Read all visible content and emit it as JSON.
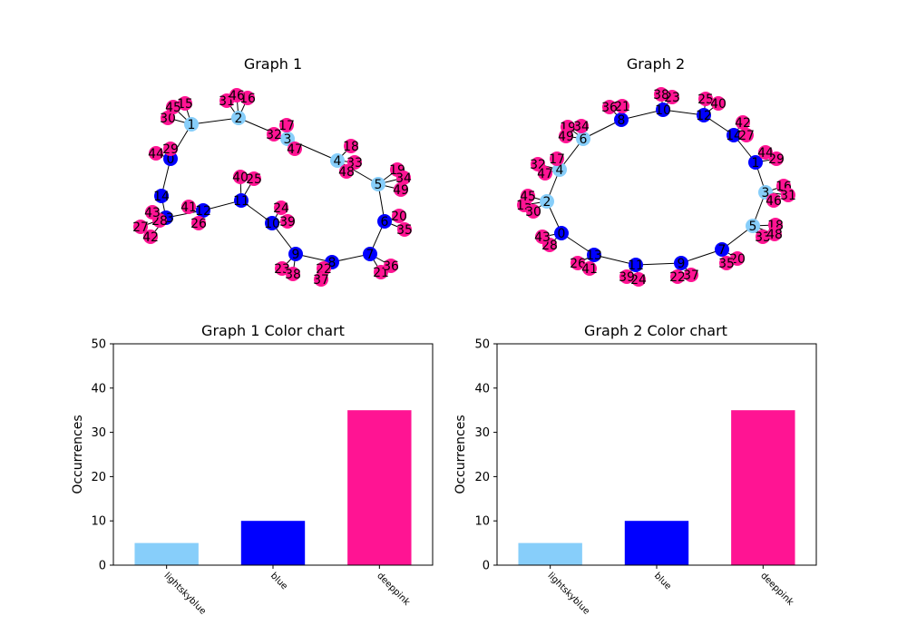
{
  "colors": {
    "lightskyblue": "#87cefa",
    "blue": "#0000ff",
    "deeppink": "#ff1493",
    "edge": "#000000",
    "label": "#000000"
  },
  "graphs": [
    {
      "title": "Graph 1",
      "nodes": [
        {
          "id": "1",
          "color": "lightskyblue"
        },
        {
          "id": "2",
          "color": "lightskyblue"
        },
        {
          "id": "3",
          "color": "lightskyblue"
        },
        {
          "id": "4",
          "color": "lightskyblue"
        },
        {
          "id": "5",
          "color": "lightskyblue"
        },
        {
          "id": "6",
          "color": "blue"
        },
        {
          "id": "7",
          "color": "blue"
        },
        {
          "id": "8",
          "color": "blue"
        },
        {
          "id": "9",
          "color": "blue"
        },
        {
          "id": "10",
          "color": "blue"
        },
        {
          "id": "11",
          "color": "blue"
        },
        {
          "id": "12",
          "color": "blue"
        },
        {
          "id": "13",
          "color": "blue"
        },
        {
          "id": "14",
          "color": "blue"
        },
        {
          "id": "0",
          "color": "blue"
        },
        {
          "id": "15",
          "color": "deeppink"
        },
        {
          "id": "16",
          "color": "deeppink"
        },
        {
          "id": "17",
          "color": "deeppink"
        },
        {
          "id": "18",
          "color": "deeppink"
        },
        {
          "id": "19",
          "color": "deeppink"
        },
        {
          "id": "20",
          "color": "deeppink"
        },
        {
          "id": "21",
          "color": "deeppink"
        },
        {
          "id": "22",
          "color": "deeppink"
        },
        {
          "id": "23",
          "color": "deeppink"
        },
        {
          "id": "24",
          "color": "deeppink"
        },
        {
          "id": "25",
          "color": "deeppink"
        },
        {
          "id": "26",
          "color": "deeppink"
        },
        {
          "id": "27",
          "color": "deeppink"
        },
        {
          "id": "28",
          "color": "deeppink"
        },
        {
          "id": "29",
          "color": "deeppink"
        },
        {
          "id": "30",
          "color": "deeppink"
        },
        {
          "id": "31",
          "color": "deeppink"
        },
        {
          "id": "32",
          "color": "deeppink"
        },
        {
          "id": "33",
          "color": "deeppink"
        },
        {
          "id": "34",
          "color": "deeppink"
        },
        {
          "id": "35",
          "color": "deeppink"
        },
        {
          "id": "36",
          "color": "deeppink"
        },
        {
          "id": "37",
          "color": "deeppink"
        },
        {
          "id": "38",
          "color": "deeppink"
        },
        {
          "id": "39",
          "color": "deeppink"
        },
        {
          "id": "40",
          "color": "deeppink"
        },
        {
          "id": "41",
          "color": "deeppink"
        },
        {
          "id": "42",
          "color": "deeppink"
        },
        {
          "id": "43",
          "color": "deeppink"
        },
        {
          "id": "44",
          "color": "deeppink"
        },
        {
          "id": "45",
          "color": "deeppink"
        },
        {
          "id": "46",
          "color": "deeppink"
        },
        {
          "id": "47",
          "color": "deeppink"
        },
        {
          "id": "48",
          "color": "deeppink"
        },
        {
          "id": "49",
          "color": "deeppink"
        }
      ],
      "edges": [
        [
          "1",
          "2"
        ],
        [
          "2",
          "3"
        ],
        [
          "3",
          "4"
        ],
        [
          "4",
          "5"
        ],
        [
          "5",
          "6"
        ],
        [
          "6",
          "7"
        ],
        [
          "7",
          "8"
        ],
        [
          "8",
          "9"
        ],
        [
          "9",
          "10"
        ],
        [
          "10",
          "11"
        ],
        [
          "11",
          "12"
        ],
        [
          "12",
          "13"
        ],
        [
          "13",
          "14"
        ],
        [
          "14",
          "0"
        ],
        [
          "0",
          "1"
        ],
        [
          "1",
          "15"
        ],
        [
          "1",
          "30"
        ],
        [
          "1",
          "45"
        ],
        [
          "2",
          "31"
        ],
        [
          "2",
          "46"
        ],
        [
          "2",
          "16"
        ],
        [
          "3",
          "17"
        ],
        [
          "3",
          "32"
        ],
        [
          "3",
          "47"
        ],
        [
          "4",
          "18"
        ],
        [
          "4",
          "33"
        ],
        [
          "4",
          "48"
        ],
        [
          "5",
          "19"
        ],
        [
          "5",
          "34"
        ],
        [
          "5",
          "49"
        ],
        [
          "6",
          "20"
        ],
        [
          "6",
          "35"
        ],
        [
          "7",
          "21"
        ],
        [
          "7",
          "36"
        ],
        [
          "8",
          "22"
        ],
        [
          "8",
          "37"
        ],
        [
          "9",
          "23"
        ],
        [
          "9",
          "38"
        ],
        [
          "10",
          "24"
        ],
        [
          "10",
          "39"
        ],
        [
          "11",
          "40"
        ],
        [
          "11",
          "25"
        ],
        [
          "12",
          "41"
        ],
        [
          "12",
          "26"
        ],
        [
          "13",
          "27"
        ],
        [
          "13",
          "42"
        ],
        [
          "13",
          "43"
        ],
        [
          "13",
          "28"
        ],
        [
          "0",
          "29"
        ],
        [
          "0",
          "44"
        ]
      ]
    },
    {
      "title": "Graph 2",
      "nodes": [
        {
          "id": "1",
          "color": "blue"
        },
        {
          "id": "2",
          "color": "lightskyblue"
        },
        {
          "id": "3",
          "color": "lightskyblue"
        },
        {
          "id": "4",
          "color": "lightskyblue"
        },
        {
          "id": "5",
          "color": "lightskyblue"
        },
        {
          "id": "6",
          "color": "lightskyblue"
        },
        {
          "id": "7",
          "color": "blue"
        },
        {
          "id": "8",
          "color": "blue"
        },
        {
          "id": "9",
          "color": "blue"
        },
        {
          "id": "10",
          "color": "blue"
        },
        {
          "id": "11",
          "color": "blue"
        },
        {
          "id": "12",
          "color": "blue"
        },
        {
          "id": "13",
          "color": "blue"
        },
        {
          "id": "14",
          "color": "blue"
        },
        {
          "id": "0",
          "color": "blue"
        },
        {
          "id": "15",
          "color": "deeppink"
        },
        {
          "id": "16",
          "color": "deeppink"
        },
        {
          "id": "17",
          "color": "deeppink"
        },
        {
          "id": "18",
          "color": "deeppink"
        },
        {
          "id": "19",
          "color": "deeppink"
        },
        {
          "id": "20",
          "color": "deeppink"
        },
        {
          "id": "21",
          "color": "deeppink"
        },
        {
          "id": "22",
          "color": "deeppink"
        },
        {
          "id": "23",
          "color": "deeppink"
        },
        {
          "id": "24",
          "color": "deeppink"
        },
        {
          "id": "25",
          "color": "deeppink"
        },
        {
          "id": "26",
          "color": "deeppink"
        },
        {
          "id": "27",
          "color": "deeppink"
        },
        {
          "id": "28",
          "color": "deeppink"
        },
        {
          "id": "29",
          "color": "deeppink"
        },
        {
          "id": "30",
          "color": "deeppink"
        },
        {
          "id": "31",
          "color": "deeppink"
        },
        {
          "id": "32",
          "color": "deeppink"
        },
        {
          "id": "33",
          "color": "deeppink"
        },
        {
          "id": "34",
          "color": "deeppink"
        },
        {
          "id": "35",
          "color": "deeppink"
        },
        {
          "id": "36",
          "color": "deeppink"
        },
        {
          "id": "37",
          "color": "deeppink"
        },
        {
          "id": "38",
          "color": "deeppink"
        },
        {
          "id": "39",
          "color": "deeppink"
        },
        {
          "id": "40",
          "color": "deeppink"
        },
        {
          "id": "41",
          "color": "deeppink"
        },
        {
          "id": "42",
          "color": "deeppink"
        },
        {
          "id": "43",
          "color": "deeppink"
        },
        {
          "id": "44",
          "color": "deeppink"
        },
        {
          "id": "45",
          "color": "deeppink"
        },
        {
          "id": "46",
          "color": "deeppink"
        },
        {
          "id": "47",
          "color": "deeppink"
        },
        {
          "id": "48",
          "color": "deeppink"
        },
        {
          "id": "49",
          "color": "deeppink"
        }
      ],
      "edges": [
        [
          "8",
          "10"
        ],
        [
          "10",
          "12"
        ],
        [
          "12",
          "14"
        ],
        [
          "14",
          "1"
        ],
        [
          "1",
          "3"
        ],
        [
          "3",
          "5"
        ],
        [
          "5",
          "7"
        ],
        [
          "7",
          "9"
        ],
        [
          "9",
          "11"
        ],
        [
          "11",
          "13"
        ],
        [
          "13",
          "0"
        ],
        [
          "0",
          "2"
        ],
        [
          "2",
          "4"
        ],
        [
          "4",
          "6"
        ],
        [
          "6",
          "8"
        ],
        [
          "8",
          "36"
        ],
        [
          "8",
          "21"
        ],
        [
          "10",
          "38"
        ],
        [
          "10",
          "23"
        ],
        [
          "12",
          "25"
        ],
        [
          "12",
          "40"
        ],
        [
          "14",
          "42"
        ],
        [
          "14",
          "27"
        ],
        [
          "1",
          "44"
        ],
        [
          "1",
          "29"
        ],
        [
          "3",
          "16"
        ],
        [
          "3",
          "46"
        ],
        [
          "3",
          "31"
        ],
        [
          "5",
          "18"
        ],
        [
          "5",
          "33"
        ],
        [
          "5",
          "48"
        ],
        [
          "7",
          "20"
        ],
        [
          "7",
          "35"
        ],
        [
          "9",
          "22"
        ],
        [
          "9",
          "37"
        ],
        [
          "11",
          "39"
        ],
        [
          "11",
          "24"
        ],
        [
          "13",
          "26"
        ],
        [
          "13",
          "41"
        ],
        [
          "0",
          "43"
        ],
        [
          "0",
          "28"
        ],
        [
          "2",
          "45"
        ],
        [
          "2",
          "15"
        ],
        [
          "2",
          "30"
        ],
        [
          "4",
          "32"
        ],
        [
          "4",
          "17"
        ],
        [
          "4",
          "47"
        ],
        [
          "6",
          "19"
        ],
        [
          "6",
          "34"
        ],
        [
          "6",
          "49"
        ]
      ]
    }
  ],
  "chart_data": [
    {
      "type": "bar",
      "title": "Graph 1 Color chart",
      "xlabel": "",
      "ylabel": "Occurrences",
      "categories": [
        "lightskyblue",
        "blue",
        "deeppink"
      ],
      "values": [
        5,
        10,
        35
      ],
      "bar_colors": [
        "#87cefa",
        "#0000ff",
        "#ff1493"
      ],
      "ylim": [
        0,
        50
      ],
      "yticks": [
        "0",
        "10",
        "20",
        "30",
        "40",
        "50"
      ],
      "grid": false,
      "legend": "none"
    },
    {
      "type": "bar",
      "title": "Graph 2 Color chart",
      "xlabel": "",
      "ylabel": "Occurrences",
      "categories": [
        "lightskyblue",
        "blue",
        "deeppink"
      ],
      "values": [
        5,
        10,
        35
      ],
      "bar_colors": [
        "#87cefa",
        "#0000ff",
        "#ff1493"
      ],
      "ylim": [
        0,
        50
      ],
      "yticks": [
        "0",
        "10",
        "20",
        "30",
        "40",
        "50"
      ],
      "grid": false,
      "legend": "none"
    }
  ]
}
